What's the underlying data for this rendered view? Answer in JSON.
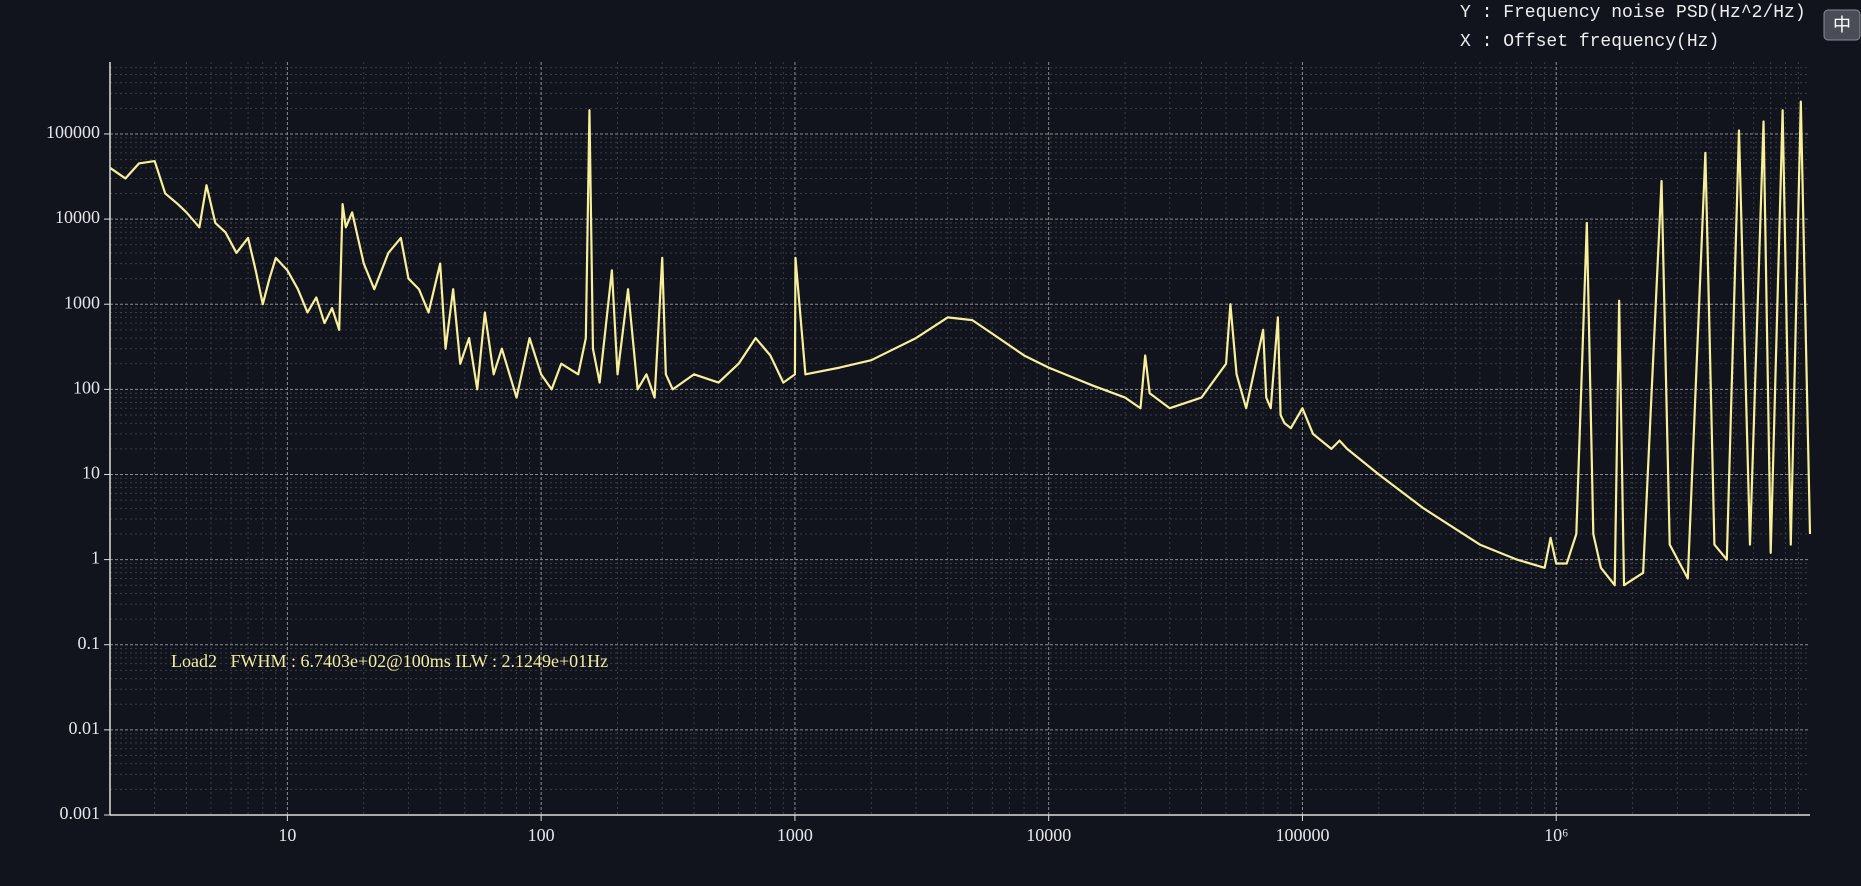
{
  "chart_data": {
    "type": "line",
    "y_label": "Y : Frequency noise PSD(Hz^2/Hz)",
    "x_label": "X : Offset frequency(Hz)",
    "annotation": "Load2   FWHM : 6.7403e+02@100ms ILW : 2.1249e+01Hz",
    "button": "中",
    "x_scale": "log",
    "y_scale": "log",
    "grid": true,
    "minor_grid": true,
    "xlim": [
      2,
      10000000
    ],
    "ylim": [
      0.001,
      700000
    ],
    "xticks": [
      10,
      100,
      1000,
      10000,
      100000,
      {
        "value": 1000000,
        "label": "10⁶"
      }
    ],
    "yticks": [
      0.001,
      0.01,
      0.1,
      1,
      10,
      100,
      1000,
      10000,
      100000
    ],
    "x": [
      2,
      2.3,
      2.6,
      3,
      3.3,
      3.7,
      4,
      4.5,
      4.8,
      5.2,
      5.7,
      6.3,
      7,
      7.5,
      8,
      8.5,
      9,
      10,
      11,
      12,
      13,
      14,
      15,
      16,
      16.5,
      17,
      18,
      20,
      22,
      25,
      28,
      30,
      33,
      36,
      40,
      42,
      45,
      48,
      52,
      56,
      60,
      65,
      70,
      80,
      90,
      100,
      110,
      120,
      140,
      150,
      155,
      160,
      170,
      190,
      200,
      220,
      240,
      260,
      280,
      300,
      310,
      330,
      400,
      500,
      600,
      700,
      800,
      900,
      1000,
      1005,
      1100,
      1500,
      2000,
      3000,
      4000,
      5000,
      6000,
      8000,
      10000,
      15000,
      20000,
      23000,
      24000,
      25000,
      30000,
      40000,
      50000,
      52000,
      55000,
      60000,
      70000,
      72000,
      75000,
      80000,
      82000,
      85000,
      90000,
      100000,
      110000,
      130000,
      140000,
      150000,
      200000,
      300000,
      500000,
      700000,
      900000,
      950000,
      1000000,
      1100000,
      1200000,
      1320000,
      1400000,
      1500000,
      1700000,
      1770000,
      1850000,
      2200000,
      2600000,
      2800000,
      3300000,
      3870000,
      4200000,
      4700000,
      5250000,
      5800000,
      6560000,
      7000000,
      7800000,
      8400000,
      9200000,
      10000000
    ],
    "series": [
      {
        "color": "#f7ef9a",
        "values": [
          40000,
          30000,
          45000,
          48000,
          20000,
          15000,
          12000,
          8000,
          25000,
          9000,
          7000,
          4000,
          6000,
          2500,
          1000,
          2000,
          3500,
          2500,
          1500,
          800,
          1200,
          600,
          900,
          500,
          15000,
          8000,
          12000,
          3000,
          1500,
          4000,
          6000,
          2000,
          1500,
          800,
          3000,
          300,
          1500,
          200,
          400,
          100,
          800,
          150,
          300,
          80,
          400,
          150,
          100,
          200,
          150,
          400,
          190000,
          300,
          120,
          2500,
          150,
          1500,
          100,
          150,
          80,
          3500,
          150,
          100,
          150,
          120,
          200,
          400,
          250,
          120,
          150,
          3500,
          150,
          180,
          220,
          400,
          700,
          650,
          450,
          250,
          180,
          110,
          80,
          60,
          250,
          90,
          60,
          80,
          200,
          1000,
          150,
          60,
          500,
          80,
          60,
          700,
          50,
          40,
          35,
          60,
          30,
          20,
          25,
          20,
          10,
          4,
          1.5,
          1,
          0.8,
          1.8,
          0.9,
          0.9,
          2,
          9000,
          2,
          0.8,
          0.5,
          1100,
          0.5,
          0.7,
          28000,
          1.5,
          0.6,
          60000,
          1.5,
          1,
          110000,
          1.5,
          140000,
          1.2,
          190000,
          1.5,
          240000,
          2
        ]
      }
    ]
  }
}
